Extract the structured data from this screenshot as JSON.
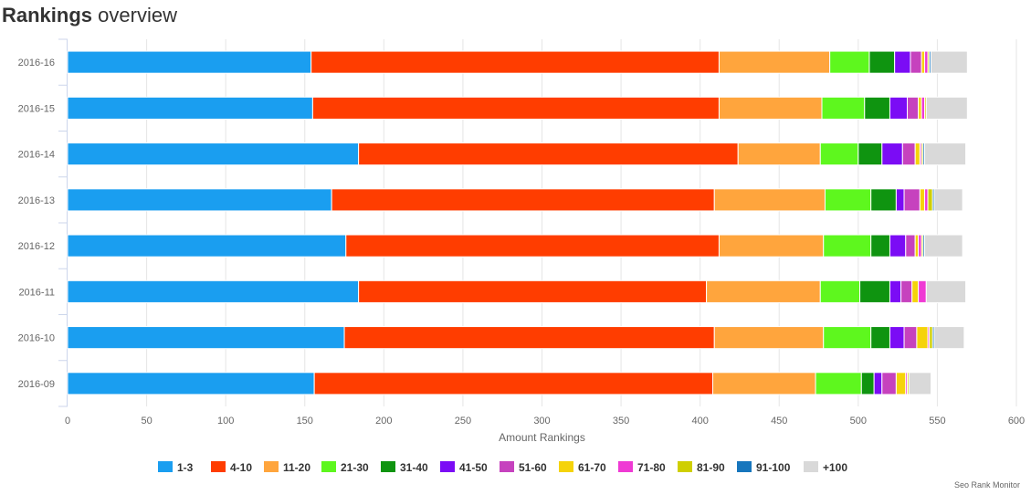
{
  "header": {
    "title_bold": "Rankings",
    "title_rest": "overview"
  },
  "credit": "Seo Rank Monitor",
  "colors": [
    "#1a9ef0",
    "#ff3d00",
    "#ffa53d",
    "#5ef71e",
    "#0f9410",
    "#7b0cf5",
    "#c642be",
    "#f5d30a",
    "#ef3ad4",
    "#cfcf00",
    "#1776bd",
    "#d9d9d9"
  ],
  "chart_data": {
    "type": "bar",
    "orientation": "horizontal",
    "stacked": true,
    "title": "Rankings overview",
    "xlabel": "Amount Rankings",
    "ylabel": "",
    "xlim": [
      0,
      600
    ],
    "xticks": [
      0,
      50,
      100,
      150,
      200,
      250,
      300,
      350,
      400,
      450,
      500,
      550,
      600
    ],
    "grid": "vertical",
    "legend": "bottom",
    "categories": [
      "2016-16",
      "2016-15",
      "2016-14",
      "2016-13",
      "2016-12",
      "2016-11",
      "2016-10",
      "2016-09"
    ],
    "series": [
      {
        "name": "1-3",
        "values": [
          154,
          155,
          184,
          167,
          176,
          184,
          175,
          156
        ]
      },
      {
        "name": "4-10",
        "values": [
          258,
          257,
          240,
          242,
          236,
          220,
          234,
          252
        ]
      },
      {
        "name": "11-20",
        "values": [
          70,
          65,
          52,
          70,
          66,
          72,
          69,
          65
        ]
      },
      {
        "name": "21-30",
        "values": [
          25,
          27,
          24,
          29,
          30,
          25,
          30,
          29
        ]
      },
      {
        "name": "31-40",
        "values": [
          16,
          16,
          15,
          16,
          12,
          19,
          12,
          8
        ]
      },
      {
        "name": "41-50",
        "values": [
          10,
          11,
          13,
          5,
          10,
          7,
          9,
          5
        ]
      },
      {
        "name": "51-60",
        "values": [
          7,
          7,
          8,
          10,
          6,
          7,
          8,
          9
        ]
      },
      {
        "name": "61-70",
        "values": [
          2,
          2,
          3,
          3,
          2,
          4,
          7,
          6
        ]
      },
      {
        "name": "71-80",
        "values": [
          2,
          2,
          1,
          2,
          2,
          5,
          1,
          1
        ]
      },
      {
        "name": "81-90",
        "values": [
          1,
          1,
          1,
          3,
          1,
          0,
          2,
          1
        ]
      },
      {
        "name": "91-100",
        "values": [
          1,
          0,
          1,
          1,
          1,
          0,
          1,
          0
        ]
      },
      {
        "name": "+100",
        "values": [
          23,
          26,
          26,
          18,
          24,
          25,
          19,
          14
        ]
      }
    ]
  }
}
